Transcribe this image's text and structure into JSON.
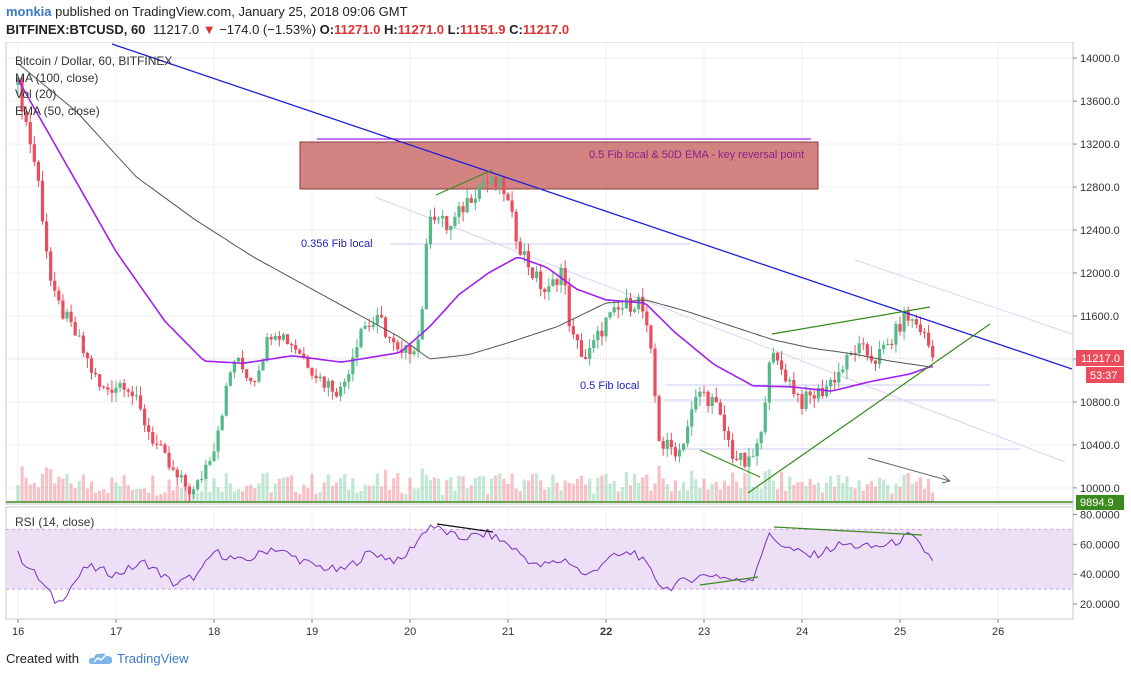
{
  "header": {
    "author": "monkia",
    "published_text": "published on TradingView.com, January 25, 2018 09:06 GMT",
    "symbol": "BITFINEX:BTCUSD, 60",
    "last": "11217.0",
    "change": "−174.0 (−1.53%)",
    "open_label": "O:",
    "open": "11271.0",
    "high_label": "H:",
    "high": "11271.0",
    "low_label": "L:",
    "low": "11151.9",
    "close_label": "C:",
    "close": "11217.0"
  },
  "legend": {
    "title": "Bitcoin / Dollar, 60, BITFINEX",
    "ma": "MA (100, close)",
    "vol": "Vol (20)",
    "ema": "EMA (50, close)"
  },
  "price_axis": {
    "ticks": [
      "14000.0",
      "13600.0",
      "13200.0",
      "12800.0",
      "12400.0",
      "12000.0",
      "11600.0",
      "11200.0",
      "10800.0",
      "10400.0",
      "10000.0"
    ],
    "current_price": "11217.0",
    "countdown": "53:37",
    "support_price": "9894.9"
  },
  "rsi": {
    "label": "RSI (14, close)",
    "ticks": [
      "80.0000",
      "60.0000",
      "40.0000",
      "20.0000"
    ]
  },
  "time_axis": [
    "16",
    "17",
    "18",
    "19",
    "20",
    "21",
    "22",
    "23",
    "24",
    "25",
    "26"
  ],
  "annotations": {
    "fib_zone": "0.5 Fib local & 50D EMA - key reversal point",
    "fib_0356": "0.356 Fib local",
    "fib_05": "0.5 Fib local"
  },
  "footer": {
    "created_with": "Created with",
    "brand": "TradingView"
  },
  "colors": {
    "up": "#53b987",
    "down": "#eb4d5c",
    "ema": "#a020f0",
    "ma": "#555555",
    "trendline": "#1f1fd6",
    "wedge": "#3a8a1e",
    "zone": "#c0504d",
    "rsi_band": "#e9d9f5",
    "rsi_line": "#7b2fbe",
    "author": "#3b78c7"
  },
  "chart_data": {
    "type": "candlestick",
    "interval": "60",
    "symbol": "BITFINEX:BTCUSD",
    "x_labels": [
      "16",
      "17",
      "18",
      "19",
      "20",
      "21",
      "22",
      "23",
      "24",
      "25",
      "26"
    ],
    "ylim": [
      9850,
      14150
    ],
    "rsi_ylim": [
      10,
      85
    ],
    "rsi_bands": [
      30,
      70
    ],
    "last_price": 11217.0,
    "support_line": 9894.9,
    "ohlc_anchors": [
      {
        "day": 16.0,
        "price": 13750
      },
      {
        "day": 16.2,
        "price": 12900
      },
      {
        "day": 16.35,
        "price": 11800
      },
      {
        "day": 16.6,
        "price": 11400
      },
      {
        "day": 16.85,
        "price": 10900
      },
      {
        "day": 17.1,
        "price": 11000
      },
      {
        "day": 17.35,
        "price": 10500
      },
      {
        "day": 17.6,
        "price": 10100
      },
      {
        "day": 17.8,
        "price": 9950
      },
      {
        "day": 18.0,
        "price": 10400
      },
      {
        "day": 18.2,
        "price": 11200
      },
      {
        "day": 18.4,
        "price": 11000
      },
      {
        "day": 18.6,
        "price": 11500
      },
      {
        "day": 18.85,
        "price": 11300
      },
      {
        "day": 19.1,
        "price": 11000
      },
      {
        "day": 19.3,
        "price": 10900
      },
      {
        "day": 19.5,
        "price": 11500
      },
      {
        "day": 19.7,
        "price": 11550
      },
      {
        "day": 19.9,
        "price": 11200
      },
      {
        "day": 20.1,
        "price": 11400
      },
      {
        "day": 20.2,
        "price": 12600
      },
      {
        "day": 20.4,
        "price": 12400
      },
      {
        "day": 20.6,
        "price": 12700
      },
      {
        "day": 20.75,
        "price": 12850
      },
      {
        "day": 20.95,
        "price": 12800
      },
      {
        "day": 21.1,
        "price": 12300
      },
      {
        "day": 21.25,
        "price": 12000
      },
      {
        "day": 21.4,
        "price": 11800
      },
      {
        "day": 21.55,
        "price": 12050
      },
      {
        "day": 21.65,
        "price": 11400
      },
      {
        "day": 21.8,
        "price": 11200
      },
      {
        "day": 22.0,
        "price": 11550
      },
      {
        "day": 22.2,
        "price": 11700
      },
      {
        "day": 22.35,
        "price": 11750
      },
      {
        "day": 22.45,
        "price": 11300
      },
      {
        "day": 22.55,
        "price": 10400
      },
      {
        "day": 22.75,
        "price": 10350
      },
      {
        "day": 22.95,
        "price": 10900
      },
      {
        "day": 23.1,
        "price": 10800
      },
      {
        "day": 23.3,
        "price": 10300
      },
      {
        "day": 23.45,
        "price": 10200
      },
      {
        "day": 23.6,
        "price": 10500
      },
      {
        "day": 23.65,
        "price": 11250
      },
      {
        "day": 23.8,
        "price": 11100
      },
      {
        "day": 24.0,
        "price": 10800
      },
      {
        "day": 24.2,
        "price": 10900
      },
      {
        "day": 24.4,
        "price": 11100
      },
      {
        "day": 24.55,
        "price": 11300
      },
      {
        "day": 24.75,
        "price": 11200
      },
      {
        "day": 24.9,
        "price": 11350
      },
      {
        "day": 25.05,
        "price": 11600
      },
      {
        "day": 25.2,
        "price": 11500
      },
      {
        "day": 25.35,
        "price": 11217
      }
    ],
    "ema50": [
      {
        "day": 16.0,
        "price": 13800
      },
      {
        "day": 16.5,
        "price": 13000
      },
      {
        "day": 17.0,
        "price": 12200
      },
      {
        "day": 17.5,
        "price": 11550
      },
      {
        "day": 17.9,
        "price": 11180
      },
      {
        "day": 18.3,
        "price": 11160
      },
      {
        "day": 18.8,
        "price": 11230
      },
      {
        "day": 19.3,
        "price": 11170
      },
      {
        "day": 19.9,
        "price": 11260
      },
      {
        "day": 20.2,
        "price": 11500
      },
      {
        "day": 20.5,
        "price": 11800
      },
      {
        "day": 20.8,
        "price": 12000
      },
      {
        "day": 21.1,
        "price": 12150
      },
      {
        "day": 21.4,
        "price": 12050
      },
      {
        "day": 21.7,
        "price": 11850
      },
      {
        "day": 22.0,
        "price": 11750
      },
      {
        "day": 22.4,
        "price": 11720
      },
      {
        "day": 22.7,
        "price": 11450
      },
      {
        "day": 23.1,
        "price": 11150
      },
      {
        "day": 23.5,
        "price": 10950
      },
      {
        "day": 23.9,
        "price": 10940
      },
      {
        "day": 24.3,
        "price": 10900
      },
      {
        "day": 24.7,
        "price": 10990
      },
      {
        "day": 25.1,
        "price": 11060
      },
      {
        "day": 25.35,
        "price": 11140
      }
    ],
    "ma100": [
      {
        "day": 16.0,
        "price": 13950
      },
      {
        "day": 16.6,
        "price": 13500
      },
      {
        "day": 17.2,
        "price": 12900
      },
      {
        "day": 17.8,
        "price": 12500
      },
      {
        "day": 18.4,
        "price": 12150
      },
      {
        "day": 18.9,
        "price": 11900
      },
      {
        "day": 19.4,
        "price": 11650
      },
      {
        "day": 19.9,
        "price": 11400
      },
      {
        "day": 20.2,
        "price": 11200
      },
      {
        "day": 20.6,
        "price": 11240
      },
      {
        "day": 21.0,
        "price": 11350
      },
      {
        "day": 21.5,
        "price": 11500
      },
      {
        "day": 22.0,
        "price": 11720
      },
      {
        "day": 22.4,
        "price": 11750
      },
      {
        "day": 22.8,
        "price": 11650
      },
      {
        "day": 23.3,
        "price": 11500
      },
      {
        "day": 23.7,
        "price": 11380
      },
      {
        "day": 24.1,
        "price": 11300
      },
      {
        "day": 24.5,
        "price": 11250
      },
      {
        "day": 24.9,
        "price": 11180
      },
      {
        "day": 25.35,
        "price": 11120
      }
    ],
    "rsi_anchors": [
      {
        "day": 16.0,
        "value": 53
      },
      {
        "day": 16.2,
        "value": 38
      },
      {
        "day": 16.4,
        "value": 20
      },
      {
        "day": 16.7,
        "value": 45
      },
      {
        "day": 17.0,
        "value": 40
      },
      {
        "day": 17.3,
        "value": 48
      },
      {
        "day": 17.6,
        "value": 33
      },
      {
        "day": 17.85,
        "value": 40
      },
      {
        "day": 18.0,
        "value": 55
      },
      {
        "day": 18.3,
        "value": 48
      },
      {
        "day": 18.6,
        "value": 58
      },
      {
        "day": 19.0,
        "value": 46
      },
      {
        "day": 19.3,
        "value": 42
      },
      {
        "day": 19.6,
        "value": 55
      },
      {
        "day": 19.9,
        "value": 48
      },
      {
        "day": 20.2,
        "value": 73
      },
      {
        "day": 20.5,
        "value": 64
      },
      {
        "day": 20.8,
        "value": 67
      },
      {
        "day": 21.0,
        "value": 60
      },
      {
        "day": 21.3,
        "value": 45
      },
      {
        "day": 21.6,
        "value": 50
      },
      {
        "day": 21.8,
        "value": 38
      },
      {
        "day": 22.0,
        "value": 50
      },
      {
        "day": 22.3,
        "value": 55
      },
      {
        "day": 22.5,
        "value": 38
      },
      {
        "day": 22.6,
        "value": 30
      },
      {
        "day": 22.9,
        "value": 38
      },
      {
        "day": 23.1,
        "value": 40
      },
      {
        "day": 23.35,
        "value": 35
      },
      {
        "day": 23.5,
        "value": 38
      },
      {
        "day": 23.65,
        "value": 66
      },
      {
        "day": 23.9,
        "value": 56
      },
      {
        "day": 24.1,
        "value": 52
      },
      {
        "day": 24.4,
        "value": 60
      },
      {
        "day": 24.7,
        "value": 58
      },
      {
        "day": 24.9,
        "value": 60
      },
      {
        "day": 25.1,
        "value": 66
      },
      {
        "day": 25.35,
        "value": 49
      }
    ]
  }
}
